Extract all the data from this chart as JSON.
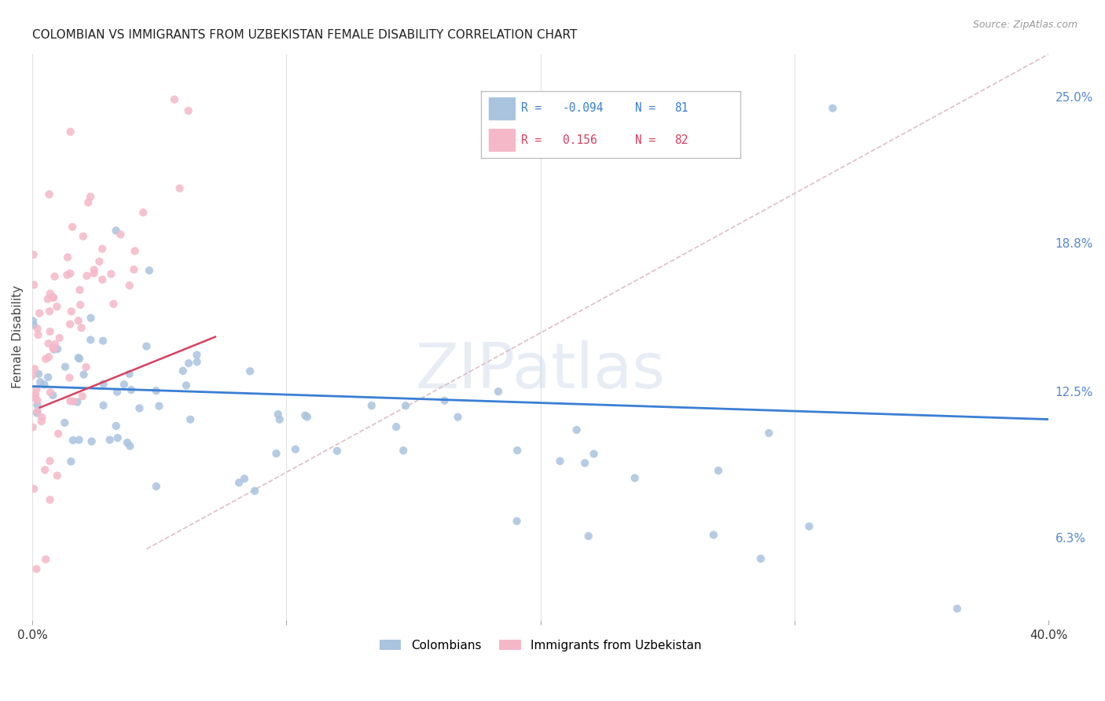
{
  "title": "COLOMBIAN VS IMMIGRANTS FROM UZBEKISTAN FEMALE DISABILITY CORRELATION CHART",
  "source": "Source: ZipAtlas.com",
  "ylabel": "Female Disability",
  "watermark": "ZIPatlas",
  "xlim": [
    0.0,
    0.4
  ],
  "ylim": [
    0.028,
    0.268
  ],
  "ytick_vals": [
    0.063,
    0.125,
    0.188,
    0.25
  ],
  "ytick_labels": [
    "6.3%",
    "12.5%",
    "18.8%",
    "25.0%"
  ],
  "xtick_vals": [
    0.0,
    0.1,
    0.2,
    0.3,
    0.4
  ],
  "xtick_labels": [
    "0.0%",
    "",
    "",
    "",
    "40.0%"
  ],
  "blue_color": "#aac4e0",
  "pink_color": "#f5b8c8",
  "blue_line_color": "#3a7fd5",
  "pink_line_color": "#d84060",
  "diag_line_color": "#dbb8c0",
  "background_color": "#ffffff",
  "blue_R": "-0.094",
  "blue_N": "81",
  "pink_R": "0.156",
  "pink_N": "82",
  "blue_line_x": [
    0.0,
    0.4
  ],
  "blue_line_y": [
    0.127,
    0.113
  ],
  "pink_line_x": [
    0.003,
    0.072
  ],
  "pink_line_y": [
    0.118,
    0.148
  ],
  "diag_line_x": [
    0.045,
    0.4
  ],
  "diag_line_y": [
    0.058,
    0.268
  ]
}
